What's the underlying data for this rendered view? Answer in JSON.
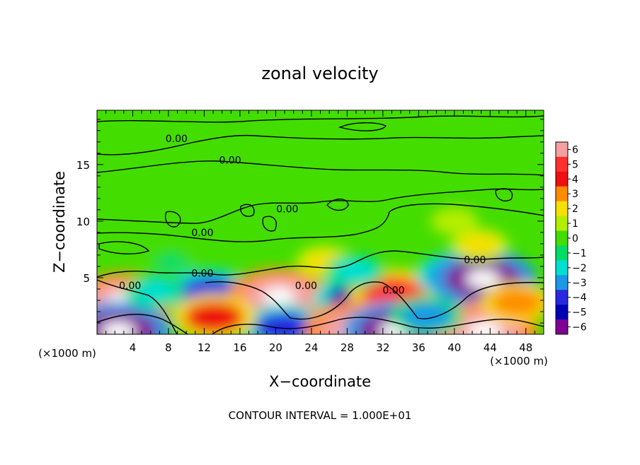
{
  "chart_data": {
    "type": "heatmap",
    "title": "zonal velocity",
    "xlabel": "X−coordinate",
    "ylabel": "Z−coordinate",
    "x_unit_left": "(×1000 m)",
    "x_unit_right": "(×1000 m)",
    "footer": "CONTOUR INTERVAL = 1.000E+01",
    "xlim": [
      0,
      50
    ],
    "ylim": [
      0,
      19.8
    ],
    "x_ticks": [
      4,
      8,
      12,
      16,
      20,
      24,
      28,
      32,
      36,
      40,
      44,
      48
    ],
    "x_tick_labels": [
      "4",
      "8",
      "12",
      "16",
      "20",
      "24",
      "28",
      "32",
      "36",
      "40",
      "44",
      "48"
    ],
    "y_ticks": [
      5,
      10,
      15
    ],
    "y_tick_labels": [
      "5",
      "10",
      "15"
    ],
    "colorbar": {
      "levels": [
        6,
        5,
        4,
        3,
        2,
        1,
        0,
        -1,
        -2,
        -3,
        -4,
        -5,
        -6
      ],
      "labels": [
        "6",
        "5",
        "4",
        "3",
        "2",
        "1",
        "0",
        "−1",
        "−2",
        "−3",
        "−4",
        "−5",
        "−6"
      ],
      "colors": [
        "#f4a0a0",
        "#ff3030",
        "#ee1010",
        "#ff8c00",
        "#f5e000",
        "#b4ee00",
        "#44dd00",
        "#00dd66",
        "#00e0d0",
        "#1a9ae6",
        "#2828e0",
        "#0000b4",
        "#800096"
      ]
    },
    "contour_labels": [
      {
        "text": "0.00",
        "x": 8.9,
        "z": 17.3
      },
      {
        "text": "0.00",
        "x": 14.9,
        "z": 15.4
      },
      {
        "text": "0.00",
        "x": 21.3,
        "z": 11.1
      },
      {
        "text": "0.00",
        "x": 11.8,
        "z": 9.0
      },
      {
        "text": "0.00",
        "x": 42.3,
        "z": 6.6
      },
      {
        "text": "0.00",
        "x": 11.8,
        "z": 5.4
      },
      {
        "text": "0.00",
        "x": 3.7,
        "z": 4.3
      },
      {
        "text": "0.00",
        "x": 23.4,
        "z": 4.3
      },
      {
        "text": "0.00",
        "x": 33.2,
        "z": 3.9
      }
    ],
    "field_features": [
      {
        "x": 3.0,
        "z": 3.0,
        "value": 5.5
      },
      {
        "x": 12.7,
        "z": 3.6,
        "value": -4.5
      },
      {
        "x": 20.4,
        "z": 3.4,
        "value": 5.5
      },
      {
        "x": 29.6,
        "z": 3.1,
        "value": -5
      },
      {
        "x": 33.2,
        "z": 3.6,
        "value": 4.5
      },
      {
        "x": 40.4,
        "z": 5.2,
        "value": -4
      },
      {
        "x": 43.2,
        "z": 4.9,
        "value": -6
      },
      {
        "x": 2.4,
        "z": 0.3,
        "value": -6
      },
      {
        "x": 20.9,
        "z": 0.6,
        "value": -4
      },
      {
        "x": 29.2,
        "z": 0.3,
        "value": 6
      },
      {
        "x": 33.5,
        "z": 0.3,
        "value": -6
      },
      {
        "x": 43.4,
        "z": 0.3,
        "value": 6
      },
      {
        "x": 13.1,
        "z": 1.5,
        "value": 4
      },
      {
        "x": 36.9,
        "z": 1.6,
        "value": -3
      },
      {
        "x": 47.0,
        "z": 2.8,
        "value": 3
      },
      {
        "x": 42.8,
        "z": 7.9,
        "value": 2
      },
      {
        "x": 40.0,
        "z": 10.0,
        "value": 1
      },
      {
        "x": 8.3,
        "z": 6.4,
        "value": -1
      },
      {
        "x": 25.5,
        "z": 6.4,
        "value": 2
      },
      {
        "x": 28.9,
        "z": 5.6,
        "value": -2
      },
      {
        "x": 6.4,
        "z": 3.8,
        "value": -2
      }
    ]
  }
}
